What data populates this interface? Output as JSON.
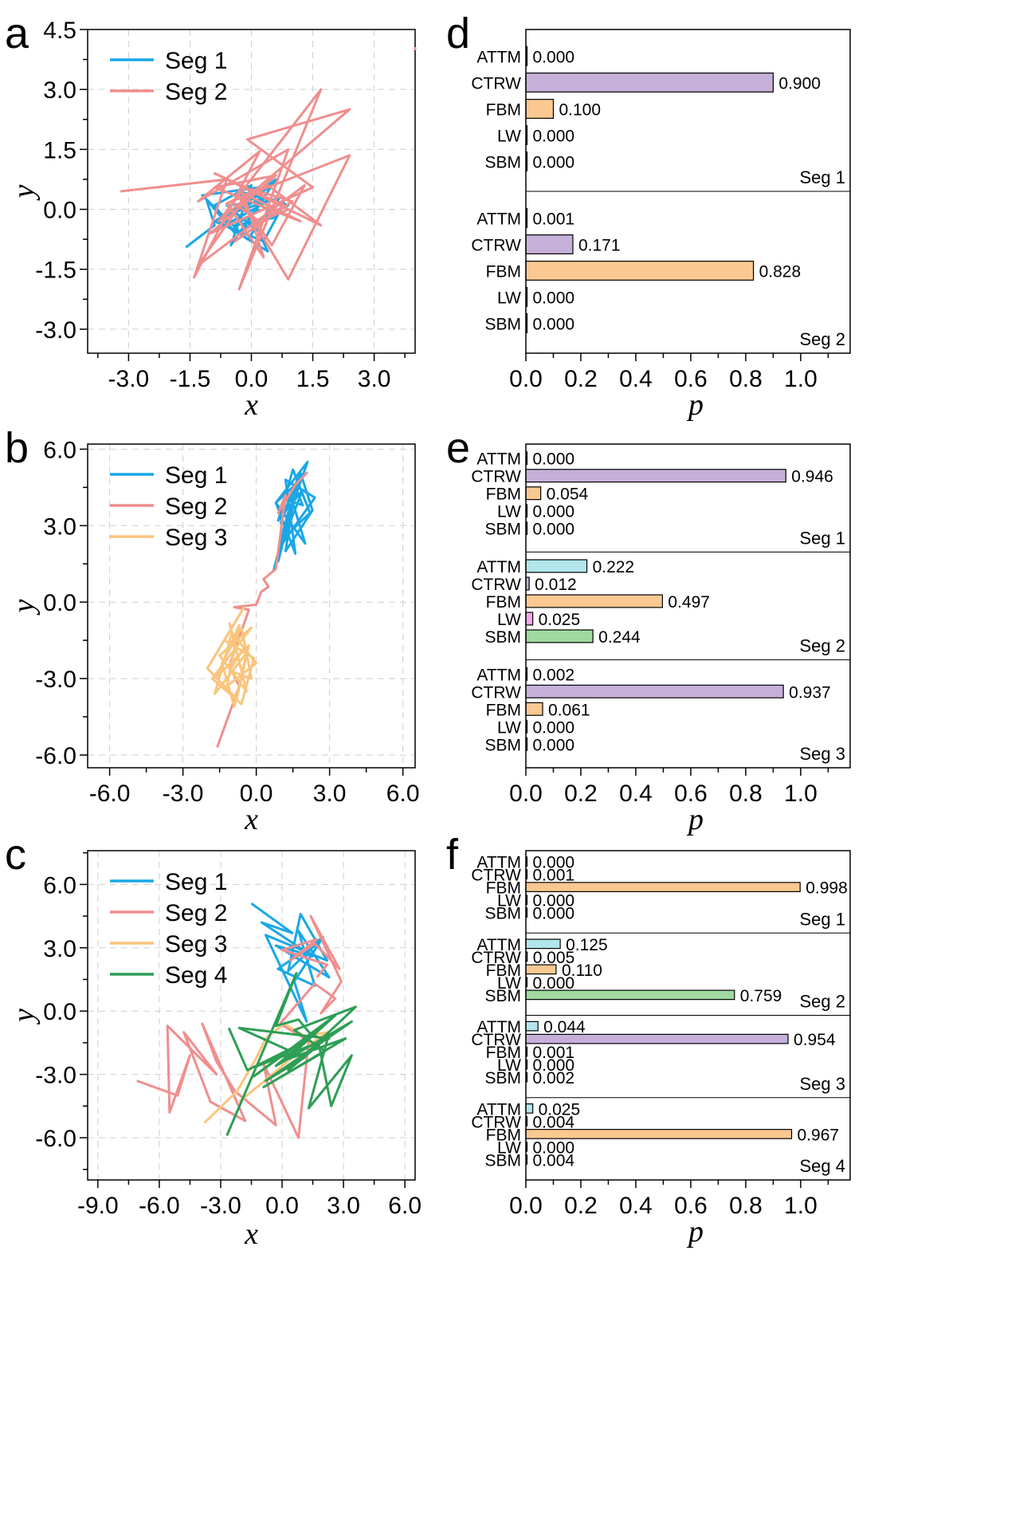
{
  "palette": {
    "Seg 1": "#1aa7e6",
    "Seg 2": "#f08e8e",
    "Seg 3": "#f9c57c",
    "Seg 4": "#2e9e55",
    "ATTM": "#b2e6ec",
    "CTRW": "#c6b0da",
    "FBM": "#fbc891",
    "LW": "#f5a8ee",
    "SBM": "#9fd99f"
  },
  "chart_data": [
    {
      "panel": "a",
      "type": "line",
      "xlabel": "x",
      "ylabel": "y",
      "xlim": [
        -4.0,
        4.0
      ],
      "ylim": [
        -3.6,
        4.5
      ],
      "xticks": [
        -3.0,
        -1.5,
        0.0,
        1.5,
        3.0
      ],
      "xtick_labels": [
        "-3.0",
        "-1.5",
        "0.0",
        "1.5",
        "3.0"
      ],
      "yticks": [
        -3.0,
        -1.5,
        0.0,
        1.5,
        3.0,
        4.5
      ],
      "ytick_labels": [
        "-3.0",
        "-1.5",
        "0.0",
        "1.5",
        "3.0",
        "4.5"
      ],
      "legend": [
        "Seg 1",
        "Seg 2"
      ],
      "series": [
        {
          "name": "Seg 1",
          "x": [
            -1.6,
            -0.9,
            -1.1,
            -0.4,
            -0.9,
            0.0,
            -0.5,
            0.3,
            -0.7,
            0.6,
            -0.2,
            0.9,
            -0.3,
            0.4,
            -0.8,
            0.2,
            -1.2,
            -0.1,
            0.7,
            -0.5,
            0.5,
            -0.9,
            0.3,
            0.8,
            -0.2,
            0.1,
            -0.6,
            0.4,
            -1.0,
            0.0,
            0.6,
            -0.4,
            0.2
          ],
          "y": [
            -0.95,
            -0.4,
            0.25,
            -0.6,
            0.1,
            0.6,
            -0.9,
            0.3,
            -0.2,
            0.75,
            -0.5,
            0.1,
            0.45,
            -1.05,
            -0.3,
            0.55,
            0.35,
            -0.75,
            0.3,
            -0.1,
            0.6,
            -0.3,
            -0.8,
            0.15,
            0.4,
            -0.5,
            0.1,
            0.2,
            -0.6,
            0.3,
            -0.2,
            -0.4,
            0.0
          ]
        },
        {
          "name": "Seg 2",
          "x": [
            -3.2,
            -0.6,
            -1.4,
            0.2,
            -1.3,
            0.9,
            -0.3,
            1.7,
            -0.8,
            2.4,
            -0.1,
            1.5,
            -1.0,
            0.6,
            -0.9,
            1.2,
            -0.2,
            0.3,
            -0.6,
            2.4,
            0.9,
            -0.3,
            0.5,
            1.3,
            -1.3,
            0.0,
            1.0,
            -0.4,
            0.8,
            -0.9,
            1.7,
            0.4,
            -0.5,
            0.2,
            0.9
          ],
          "y": [
            0.45,
            0.75,
            -1.7,
            1.45,
            0.2,
            1.5,
            -2.0,
            3.0,
            -0.3,
            2.5,
            1.75,
            0.55,
            -0.6,
            0.85,
            0.55,
            -0.3,
            0.4,
            -1.2,
            0.15,
            1.35,
            -1.75,
            0.3,
            -0.9,
            0.6,
            -1.4,
            0.5,
            0.2,
            -0.8,
            0.1,
            0.9,
            -0.4,
            0.6,
            0.2,
            -0.3,
            0.0
          ]
        }
      ]
    },
    {
      "panel": "b",
      "type": "line",
      "xlabel": "x",
      "ylabel": "y",
      "xlim": [
        -6.9,
        6.5
      ],
      "ylim": [
        -6.5,
        6.2
      ],
      "xticks": [
        -6.0,
        -3.0,
        0.0,
        3.0,
        6.0
      ],
      "xtick_labels": [
        "-6.0",
        "-3.0",
        "0.0",
        "3.0",
        "6.0"
      ],
      "yticks": [
        -6.0,
        -3.0,
        0.0,
        3.0,
        6.0
      ],
      "ytick_labels": [
        "-6.0",
        "-3.0",
        "0.0",
        "3.0",
        "6.0"
      ],
      "legend": [
        "Seg 1",
        "Seg 2",
        "Seg 3"
      ],
      "series": [
        {
          "name": "Seg 1",
          "x": [
            0.7,
            1.3,
            0.9,
            1.8,
            1.1,
            2.1,
            0.8,
            1.6,
            1.2,
            2.4,
            1.0,
            1.9,
            0.9,
            1.5,
            2.2,
            1.1,
            1.7,
            0.8,
            2.0,
            1.4,
            1.0,
            1.8,
            2.3,
            1.2,
            1.6,
            1.9,
            1.3
          ],
          "y": [
            1.2,
            3.5,
            1.6,
            5.0,
            2.8,
            5.5,
            3.9,
            1.9,
            4.8,
            4.1,
            2.2,
            4.4,
            3.2,
            5.2,
            3.5,
            2.5,
            4.7,
            3.9,
            2.3,
            4.2,
            3.1,
            5.1,
            3.6,
            2.0,
            4.5,
            3.8,
            4.0
          ]
        },
        {
          "name": "Seg 2",
          "x": [
            -1.6,
            -0.7,
            -1.1,
            -0.3,
            -0.9,
            0.0,
            0.2,
            0.5,
            0.3,
            0.8,
            1.2,
            0.9,
            1.6,
            1.9,
            2.1
          ],
          "y": [
            -5.7,
            -3.3,
            -2.5,
            -0.3,
            -0.2,
            -0.1,
            0.4,
            0.6,
            0.9,
            1.3,
            4.2,
            3.5,
            4.6,
            4.9,
            5.1
          ]
        },
        {
          "name": "Seg 3",
          "x": [
            -1.1,
            -0.4,
            -1.5,
            -0.2,
            -1.8,
            -0.6,
            -0.1,
            -1.3,
            -0.5,
            -2.0,
            -0.8,
            -0.3,
            -1.6,
            -0.7,
            -1.2,
            0.0,
            -1.0,
            -1.7,
            -0.4,
            -0.9,
            -1.4,
            -0.6,
            -0.2,
            -1.1,
            -0.5,
            -0.8
          ],
          "y": [
            -0.8,
            -3.5,
            -2.1,
            -1.0,
            -3.0,
            -4.0,
            -2.2,
            -1.5,
            -0.2,
            -2.6,
            -3.8,
            -1.7,
            -2.9,
            -0.9,
            -3.3,
            -2.4,
            -1.2,
            -3.6,
            -2.0,
            -4.1,
            -2.4,
            -1.0,
            -3.0,
            -2.7,
            -1.8,
            -2.2
          ]
        }
      ]
    },
    {
      "panel": "c",
      "type": "line",
      "xlabel": "x",
      "ylabel": "y",
      "xlim": [
        -9.5,
        6.5
      ],
      "ylim": [
        -8.0,
        7.6
      ],
      "xticks": [
        -9.0,
        -6.0,
        -3.0,
        0.0,
        3.0,
        6.0
      ],
      "xtick_labels": [
        "-9.0",
        "-6.0",
        "-3.0",
        "0.0",
        "3.0",
        "6.0"
      ],
      "yticks": [
        -6.0,
        -3.0,
        0.0,
        3.0,
        6.0
      ],
      "ytick_labels": [
        "-6.0",
        "-3.0",
        "0.0",
        "3.0",
        "6.0"
      ],
      "legend": [
        "Seg 1",
        "Seg 2",
        "Seg 3",
        "Seg 4"
      ],
      "series": [
        {
          "name": "Seg 1",
          "x": [
            -1.5,
            0.5,
            -1.0,
            1.5,
            -0.3,
            2.3,
            0.8,
            1.6,
            -0.2,
            2.0,
            0.6,
            1.2,
            -0.8,
            2.2,
            0.9,
            0.3,
            1.8,
            0.6
          ],
          "y": [
            5.1,
            3.7,
            4.2,
            2.6,
            3.1,
            1.6,
            3.8,
            1.2,
            2.0,
            3.5,
            1.4,
            -0.5,
            3.6,
            2.4,
            4.6,
            1.9,
            3.3,
            2.5
          ]
        },
        {
          "name": "Seg 2",
          "x": [
            -7.1,
            -5.1,
            -4.5,
            -5.5,
            -5.6,
            -3.2,
            -4.8,
            -3.5,
            -1.8,
            -3.9,
            -3.2,
            -2.3,
            -0.3,
            -0.9,
            0.8,
            1.3,
            -0.1,
            1.6,
            2.6,
            1.9,
            2.9,
            1.4,
            2.8,
            1.6,
            0.4,
            1.7,
            0.0,
            2.2,
            1.7
          ],
          "y": [
            -3.3,
            -4.0,
            -2.1,
            -4.8,
            -0.7,
            -3.0,
            -1.0,
            -4.3,
            -5.2,
            -0.6,
            -2.4,
            -3.8,
            -5.4,
            -2.5,
            -6.0,
            -1.4,
            -0.6,
            1.3,
            0.6,
            -0.1,
            1.4,
            4.5,
            2.0,
            3.2,
            2.4,
            3.4,
            2.9,
            2.2,
            1.6
          ]
        },
        {
          "name": "Seg 3",
          "x": [
            -3.8,
            -2.2,
            -1.3,
            -0.8,
            0.1,
            1.1,
            2.2,
            0.5,
            -0.6,
            -2.1
          ],
          "y": [
            -5.3,
            -3.8,
            -2.3,
            -1.3,
            -0.6,
            -1.2,
            -1.0,
            -2.2,
            -3.1,
            -4.3
          ]
        },
        {
          "name": "Seg 4",
          "x": [
            -2.6,
            -1.7,
            0.8,
            -1.2,
            2.3,
            -2.1,
            1.1,
            -0.8,
            3.4,
            -0.3,
            1.6,
            -1.4,
            2.6,
            0.2,
            3.1,
            -0.9,
            2.1,
            0.6,
            3.6,
            0.3,
            1.8,
            2.4,
            3.4,
            1.3,
            2.2,
            1.4,
            0.8,
            -0.3,
            0.7,
            -2.7
          ],
          "y": [
            -0.8,
            -2.8,
            -1.6,
            -2.6,
            -1.3,
            -0.8,
            -2.2,
            -3.3,
            -0.5,
            -2.6,
            -1.0,
            -3.1,
            -0.2,
            -2.3,
            -1.3,
            -3.6,
            -1.9,
            -0.9,
            0.2,
            -2.8,
            -1.6,
            -4.5,
            -2.1,
            -4.6,
            -1.4,
            -1.1,
            -0.4,
            -0.7,
            1.8,
            -5.9
          ]
        }
      ]
    },
    {
      "panel": "d",
      "type": "bar",
      "orientation": "horizontal",
      "xlabel": "p",
      "xlim": [
        0.0,
        1.18
      ],
      "xticks": [
        0.0,
        0.2,
        0.4,
        0.6,
        0.8,
        1.0
      ],
      "xtick_labels": [
        "0.0",
        "0.2",
        "0.4",
        "0.6",
        "0.8",
        "1.0"
      ],
      "categories": [
        "ATTM",
        "CTRW",
        "FBM",
        "LW",
        "SBM"
      ],
      "groups": [
        {
          "name": "Seg 1",
          "values": [
            0.0,
            0.9,
            0.1,
            0.0,
            0.0
          ],
          "labels": [
            "0.000",
            "0.900",
            "0.100",
            "0.000",
            "0.000"
          ]
        },
        {
          "name": "Seg 2",
          "values": [
            0.001,
            0.171,
            0.828,
            0.0,
            0.0
          ],
          "labels": [
            "0.001",
            "0.171",
            "0.828",
            "0.000",
            "0.000"
          ]
        }
      ]
    },
    {
      "panel": "e",
      "type": "bar",
      "orientation": "horizontal",
      "xlabel": "p",
      "xlim": [
        0.0,
        1.18
      ],
      "xticks": [
        0.0,
        0.2,
        0.4,
        0.6,
        0.8,
        1.0
      ],
      "xtick_labels": [
        "0.0",
        "0.2",
        "0.4",
        "0.6",
        "0.8",
        "1.0"
      ],
      "categories": [
        "ATTM",
        "CTRW",
        "FBM",
        "LW",
        "SBM"
      ],
      "groups": [
        {
          "name": "Seg 1",
          "values": [
            0.0,
            0.946,
            0.054,
            0.0,
            0.0
          ],
          "labels": [
            "0.000",
            "0.946",
            "0.054",
            "0.000",
            "0.000"
          ]
        },
        {
          "name": "Seg 2",
          "values": [
            0.222,
            0.012,
            0.497,
            0.025,
            0.244
          ],
          "labels": [
            "0.222",
            "0.012",
            "0.497",
            "0.025",
            "0.244"
          ]
        },
        {
          "name": "Seg 3",
          "values": [
            0.002,
            0.937,
            0.061,
            0.0,
            0.0
          ],
          "labels": [
            "0.002",
            "0.937",
            "0.061",
            "0.000",
            "0.000"
          ]
        }
      ]
    },
    {
      "panel": "f",
      "type": "bar",
      "orientation": "horizontal",
      "xlabel": "p",
      "xlim": [
        0.0,
        1.18
      ],
      "xticks": [
        0.0,
        0.2,
        0.4,
        0.6,
        0.8,
        1.0
      ],
      "xtick_labels": [
        "0.0",
        "0.2",
        "0.4",
        "0.6",
        "0.8",
        "1.0"
      ],
      "categories": [
        "ATTM",
        "CTRW",
        "FBM",
        "LW",
        "SBM"
      ],
      "groups": [
        {
          "name": "Seg 1",
          "values": [
            0.0,
            0.001,
            0.998,
            0.0,
            0.0
          ],
          "labels": [
            "0.000",
            "0.001",
            "0.998",
            "0.000",
            "0.000"
          ]
        },
        {
          "name": "Seg 2",
          "values": [
            0.125,
            0.005,
            0.11,
            0.0,
            0.759
          ],
          "labels": [
            "0.125",
            "0.005",
            "0.110",
            "0.000",
            "0.759"
          ]
        },
        {
          "name": "Seg 3",
          "values": [
            0.044,
            0.954,
            0.001,
            0.0,
            0.002
          ],
          "labels": [
            "0.044",
            "0.954",
            "0.001",
            "0.000",
            "0.002"
          ]
        },
        {
          "name": "Seg 4",
          "values": [
            0.025,
            0.004,
            0.967,
            0.0,
            0.004
          ],
          "labels": [
            "0.025",
            "0.004",
            "0.967",
            "0.000",
            "0.004"
          ]
        }
      ]
    }
  ]
}
